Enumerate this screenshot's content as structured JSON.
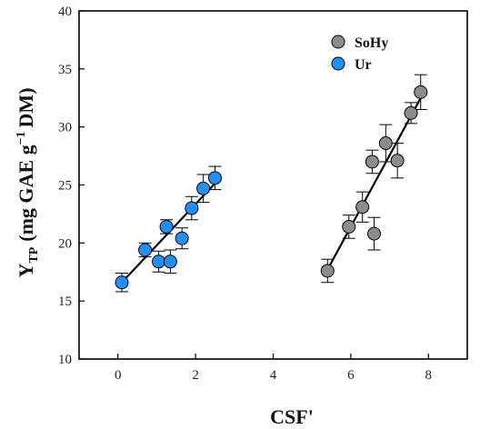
{
  "chart_data": {
    "type": "scatter",
    "xlabel": "CSF'",
    "ylabel": {
      "main": "Y",
      "sub": "TP",
      "unit_prefix": "(mg GAE g",
      "sup": "−1",
      "unit_suffix": "DM)"
    },
    "xlim": [
      -1,
      9
    ],
    "ylim": [
      10,
      40
    ],
    "x_ticks": [
      0,
      2,
      4,
      6,
      8
    ],
    "y_ticks": [
      10,
      15,
      20,
      25,
      30,
      35,
      40
    ],
    "grid": false,
    "legend_position": "top-right",
    "series": [
      {
        "name": "SoHy",
        "color": "#8c8c8c",
        "points": [
          {
            "x": 5.4,
            "y": 17.6,
            "err": 1.0
          },
          {
            "x": 5.95,
            "y": 21.4,
            "err": 1.0
          },
          {
            "x": 6.3,
            "y": 23.1,
            "err": 1.3
          },
          {
            "x": 6.55,
            "y": 27.0,
            "err": 1.0
          },
          {
            "x": 6.6,
            "y": 20.8,
            "err": 1.4
          },
          {
            "x": 6.9,
            "y": 28.6,
            "err": 1.6
          },
          {
            "x": 7.2,
            "y": 27.1,
            "err": 1.5
          },
          {
            "x": 7.55,
            "y": 31.2,
            "err": 0.9
          },
          {
            "x": 7.8,
            "y": 33.0,
            "err": 1.5
          }
        ],
        "fit": [
          [
            5.35,
            17.4
          ],
          [
            7.85,
            32.8
          ]
        ]
      },
      {
        "name": "Ur",
        "color": "#1e90ff",
        "points": [
          {
            "x": 0.1,
            "y": 16.6,
            "err": 0.8
          },
          {
            "x": 0.7,
            "y": 19.4,
            "err": 0.6
          },
          {
            "x": 1.05,
            "y": 18.4,
            "err": 0.9
          },
          {
            "x": 1.25,
            "y": 21.4,
            "err": 0.6
          },
          {
            "x": 1.35,
            "y": 18.4,
            "err": 1.0
          },
          {
            "x": 1.65,
            "y": 20.4,
            "err": 0.9
          },
          {
            "x": 1.9,
            "y": 23.0,
            "err": 1.0
          },
          {
            "x": 2.2,
            "y": 24.7,
            "err": 1.2
          },
          {
            "x": 2.5,
            "y": 25.6,
            "err": 1.0
          }
        ],
        "fit": [
          [
            0.1,
            16.6
          ],
          [
            2.55,
            25.3
          ]
        ]
      }
    ]
  }
}
